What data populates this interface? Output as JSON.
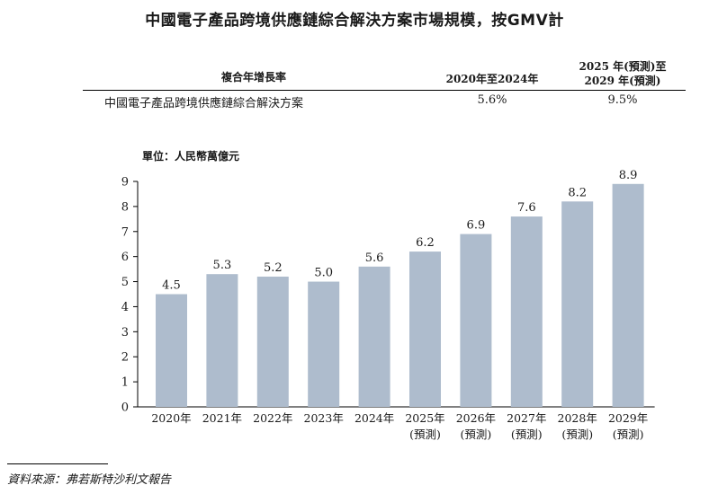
{
  "title": "中國電子產品跨境供應鏈綜合解決方案市場規模，按GMV計",
  "cagr_table": {
    "header_metric": "複合年增長率",
    "header_period_1": "2020年至2024年",
    "header_period_2_line1": "2025 年(預測)至",
    "header_period_2_line2": "2029 年(預測)",
    "row_label": "中國電子產品跨境供應鏈綜合解決方案",
    "row_value_1": "5.6%",
    "row_value_2": "9.5%"
  },
  "unit_label": "單位：人民幣萬億元",
  "source": "資料來源：弗若斯特沙利文報告",
  "colors": {
    "bar": "#aebccd",
    "axis": "#000000",
    "text": "#1a1a1a"
  },
  "chart_data": {
    "type": "bar",
    "categories": [
      "2020年",
      "2021年",
      "2022年",
      "2023年",
      "2024年",
      "2025年",
      "2026年",
      "2027年",
      "2028年",
      "2029年"
    ],
    "category_sublabels": [
      "",
      "",
      "",
      "",
      "",
      "(預測)",
      "(預測)",
      "(預測)",
      "(預測)",
      "(預測)"
    ],
    "values": [
      4.5,
      5.3,
      5.2,
      5.0,
      5.6,
      6.2,
      6.9,
      7.6,
      8.2,
      8.9
    ],
    "value_labels": [
      "4.5",
      "5.3",
      "5.2",
      "5.0",
      "5.6",
      "6.2",
      "6.9",
      "7.6",
      "8.2",
      "8.9"
    ],
    "ylim": [
      0,
      9
    ],
    "yticks": [
      0,
      1,
      2,
      3,
      4,
      5,
      6,
      7,
      8,
      9
    ],
    "grid": false,
    "legend": "none"
  }
}
